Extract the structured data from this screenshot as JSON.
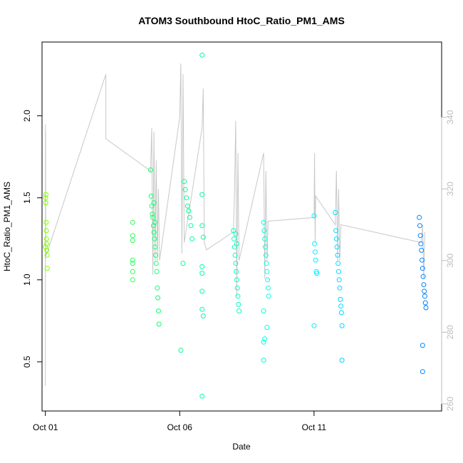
{
  "chart_data": {
    "type": "scatter",
    "title": "ATOM3 Southbound HtoC_Ratio_PM1_AMS",
    "xlabel": "Date",
    "ylabel": "HtoC_Ratio_PM1_AMS",
    "x_axis": {
      "unit": "days",
      "range": [
        "2016-09-30T21:00",
        "2016-10-15T18:00"
      ],
      "ticks": [
        {
          "label": "Oct 01",
          "date": "2016-10-01"
        },
        {
          "label": "Oct 06",
          "date": "2016-10-06"
        },
        {
          "label": "Oct 11",
          "date": "2016-10-11"
        }
      ]
    },
    "y_axis": {
      "range": [
        0.2,
        2.45
      ],
      "ticks": [
        {
          "label": "0.5",
          "value": 0.5
        },
        {
          "label": "1.0",
          "value": 1.0
        },
        {
          "label": "1.5",
          "value": 1.5
        },
        {
          "label": "2.0",
          "value": 2.0
        }
      ]
    },
    "y2_axis": {
      "range": [
        258,
        361
      ],
      "color": "#bdbdbd",
      "ticks": [
        {
          "label": "260",
          "value": 260
        },
        {
          "label": "280",
          "value": 280
        },
        {
          "label": "300",
          "value": 300
        },
        {
          "label": "320",
          "value": 320
        },
        {
          "label": "340",
          "value": 340
        }
      ]
    },
    "grid": false,
    "legend": "none",
    "point_color_gradient": [
      "#80ff00",
      "#00ff80",
      "#00ffff",
      "#0080ff"
    ],
    "line_color": "#c8c8c8",
    "points": [
      {
        "x": "2016-10-01T00:00",
        "y": 1.2
      },
      {
        "x": "2016-10-01T00:10",
        "y": 1.5
      },
      {
        "x": "2016-10-01T00:20",
        "y": 1.47
      },
      {
        "x": "2016-10-01T00:30",
        "y": 1.52
      },
      {
        "x": "2016-10-01T00:40",
        "y": 1.35
      },
      {
        "x": "2016-10-01T00:50",
        "y": 1.3
      },
      {
        "x": "2016-10-01T01:00",
        "y": 1.25
      },
      {
        "x": "2016-10-01T01:10",
        "y": 1.22
      },
      {
        "x": "2016-10-01T01:20",
        "y": 1.18
      },
      {
        "x": "2016-10-01T01:30",
        "y": 1.15
      },
      {
        "x": "2016-10-01T01:40",
        "y": 1.07
      },
      {
        "x": "2016-10-04T06:00",
        "y": 1.35
      },
      {
        "x": "2016-10-04T06:00",
        "y": 1.27
      },
      {
        "x": "2016-10-04T06:00",
        "y": 1.24
      },
      {
        "x": "2016-10-04T06:00",
        "y": 1.12
      },
      {
        "x": "2016-10-04T06:00",
        "y": 1.1
      },
      {
        "x": "2016-10-04T06:00",
        "y": 1.05
      },
      {
        "x": "2016-10-04T06:00",
        "y": 1.0
      },
      {
        "x": "2016-10-04T22:00",
        "y": 1.67
      },
      {
        "x": "2016-10-04T22:30",
        "y": 1.51
      },
      {
        "x": "2016-10-04T23:00",
        "y": 1.45
      },
      {
        "x": "2016-10-04T23:30",
        "y": 1.4
      },
      {
        "x": "2016-10-05T00:00",
        "y": 1.38
      },
      {
        "x": "2016-10-05T00:30",
        "y": 1.33
      },
      {
        "x": "2016-10-05T01:00",
        "y": 1.29
      },
      {
        "x": "2016-10-05T01:30",
        "y": 1.25
      },
      {
        "x": "2016-10-05T02:00",
        "y": 1.2
      },
      {
        "x": "2016-10-05T02:30",
        "y": 1.15
      },
      {
        "x": "2016-10-05T03:00",
        "y": 1.1
      },
      {
        "x": "2016-10-05T03:30",
        "y": 1.05
      },
      {
        "x": "2016-10-05T04:00",
        "y": 0.95
      },
      {
        "x": "2016-10-05T04:30",
        "y": 0.89
      },
      {
        "x": "2016-10-05T05:00",
        "y": 0.81
      },
      {
        "x": "2016-10-05T05:30",
        "y": 0.73
      },
      {
        "x": "2016-10-05T01:00",
        "y": 1.47
      },
      {
        "x": "2016-10-05T02:00",
        "y": 1.35
      },
      {
        "x": "2016-10-06T01:00",
        "y": 0.57
      },
      {
        "x": "2016-10-06T03:00",
        "y": 1.1
      },
      {
        "x": "2016-10-06T04:00",
        "y": 1.6
      },
      {
        "x": "2016-10-06T05:00",
        "y": 1.55
      },
      {
        "x": "2016-10-06T06:00",
        "y": 1.5
      },
      {
        "x": "2016-10-06T07:00",
        "y": 1.45
      },
      {
        "x": "2016-10-06T08:00",
        "y": 1.42
      },
      {
        "x": "2016-10-06T09:00",
        "y": 1.38
      },
      {
        "x": "2016-10-06T10:00",
        "y": 1.33
      },
      {
        "x": "2016-10-06T11:00",
        "y": 1.25
      },
      {
        "x": "2016-10-06T20:00",
        "y": 2.37
      },
      {
        "x": "2016-10-06T20:00",
        "y": 1.52
      },
      {
        "x": "2016-10-06T20:00",
        "y": 1.33
      },
      {
        "x": "2016-10-06T20:00",
        "y": 1.08
      },
      {
        "x": "2016-10-06T20:00",
        "y": 1.04
      },
      {
        "x": "2016-10-06T20:00",
        "y": 0.93
      },
      {
        "x": "2016-10-06T20:00",
        "y": 0.82
      },
      {
        "x": "2016-10-06T21:00",
        "y": 1.26
      },
      {
        "x": "2016-10-06T21:00",
        "y": 0.78
      },
      {
        "x": "2016-10-06T20:00",
        "y": 0.29
      },
      {
        "x": "2016-10-08T00:00",
        "y": 1.3
      },
      {
        "x": "2016-10-08T00:30",
        "y": 1.25
      },
      {
        "x": "2016-10-08T01:00",
        "y": 1.2
      },
      {
        "x": "2016-10-08T01:30",
        "y": 1.15
      },
      {
        "x": "2016-10-08T02:00",
        "y": 1.1
      },
      {
        "x": "2016-10-08T02:30",
        "y": 1.05
      },
      {
        "x": "2016-10-08T03:00",
        "y": 1.0
      },
      {
        "x": "2016-10-08T03:30",
        "y": 0.95
      },
      {
        "x": "2016-10-08T04:00",
        "y": 0.9
      },
      {
        "x": "2016-10-08T04:30",
        "y": 0.85
      },
      {
        "x": "2016-10-08T05:00",
        "y": 0.81
      },
      {
        "x": "2016-10-08T02:00",
        "y": 1.28
      },
      {
        "x": "2016-10-08T03:00",
        "y": 1.22
      },
      {
        "x": "2016-10-09T03:00",
        "y": 1.35
      },
      {
        "x": "2016-10-09T03:30",
        "y": 1.3
      },
      {
        "x": "2016-10-09T04:00",
        "y": 1.25
      },
      {
        "x": "2016-10-09T04:30",
        "y": 1.2
      },
      {
        "x": "2016-10-09T05:00",
        "y": 1.15
      },
      {
        "x": "2016-10-09T05:30",
        "y": 1.1
      },
      {
        "x": "2016-10-09T06:00",
        "y": 1.05
      },
      {
        "x": "2016-10-09T06:30",
        "y": 1.0
      },
      {
        "x": "2016-10-09T07:00",
        "y": 0.95
      },
      {
        "x": "2016-10-09T07:30",
        "y": 0.9
      },
      {
        "x": "2016-10-09T03:00",
        "y": 0.81
      },
      {
        "x": "2016-10-09T06:00",
        "y": 0.71
      },
      {
        "x": "2016-10-09T04:00",
        "y": 0.64
      },
      {
        "x": "2016-10-09T03:00",
        "y": 0.62
      },
      {
        "x": "2016-10-09T03:00",
        "y": 0.51
      },
      {
        "x": "2016-10-11T00:00",
        "y": 1.39
      },
      {
        "x": "2016-10-11T00:30",
        "y": 1.22
      },
      {
        "x": "2016-10-11T01:00",
        "y": 1.17
      },
      {
        "x": "2016-10-11T01:30",
        "y": 1.12
      },
      {
        "x": "2016-10-11T02:00",
        "y": 1.05
      },
      {
        "x": "2016-10-11T02:30",
        "y": 1.04
      },
      {
        "x": "2016-10-11T00:00",
        "y": 0.72
      },
      {
        "x": "2016-10-11T19:00",
        "y": 1.41
      },
      {
        "x": "2016-10-11T19:30",
        "y": 1.3
      },
      {
        "x": "2016-10-11T20:00",
        "y": 1.25
      },
      {
        "x": "2016-10-11T20:30",
        "y": 1.2
      },
      {
        "x": "2016-10-11T21:00",
        "y": 1.15
      },
      {
        "x": "2016-10-11T21:30",
        "y": 1.1
      },
      {
        "x": "2016-10-11T22:00",
        "y": 1.05
      },
      {
        "x": "2016-10-11T22:30",
        "y": 1.0
      },
      {
        "x": "2016-10-11T23:00",
        "y": 0.95
      },
      {
        "x": "2016-10-11T23:30",
        "y": 0.88
      },
      {
        "x": "2016-10-12T00:00",
        "y": 0.84
      },
      {
        "x": "2016-10-12T00:30",
        "y": 0.8
      },
      {
        "x": "2016-10-12T01:00",
        "y": 0.72
      },
      {
        "x": "2016-10-12T01:00",
        "y": 0.51
      },
      {
        "x": "2016-10-14T22:00",
        "y": 1.38
      },
      {
        "x": "2016-10-14T22:30",
        "y": 1.33
      },
      {
        "x": "2016-10-14T23:00",
        "y": 1.27
      },
      {
        "x": "2016-10-14T23:30",
        "y": 1.22
      },
      {
        "x": "2016-10-15T00:00",
        "y": 1.18
      },
      {
        "x": "2016-10-15T00:30",
        "y": 1.12
      },
      {
        "x": "2016-10-15T01:00",
        "y": 1.07
      },
      {
        "x": "2016-10-15T01:30",
        "y": 1.02
      },
      {
        "x": "2016-10-15T02:00",
        "y": 0.97
      },
      {
        "x": "2016-10-15T02:30",
        "y": 0.93
      },
      {
        "x": "2016-10-15T03:00",
        "y": 0.9
      },
      {
        "x": "2016-10-15T03:30",
        "y": 0.86
      },
      {
        "x": "2016-10-15T04:00",
        "y": 0.83
      },
      {
        "x": "2016-10-15T01:00",
        "y": 0.6
      },
      {
        "x": "2016-10-15T01:00",
        "y": 0.44
      }
    ],
    "altitude_series": [
      {
        "x": "2016-10-01T00:00",
        "y2": 300
      },
      {
        "x": "2016-10-01T00:00",
        "y2": 265
      },
      {
        "x": "2016-10-01T00:05",
        "y2": 338
      },
      {
        "x": "2016-10-01T00:10",
        "y2": 300
      },
      {
        "x": "2016-10-01T00:15",
        "y2": 336
      },
      {
        "x": "2016-10-01T00:20",
        "y2": 301
      },
      {
        "x": "2016-10-03T06:00",
        "y2": 352
      },
      {
        "x": "2016-10-03T06:00",
        "y2": 334
      },
      {
        "x": "2016-10-04T22:00",
        "y2": 325
      },
      {
        "x": "2016-10-04T23:00",
        "y2": 337
      },
      {
        "x": "2016-10-05T00:00",
        "y2": 296
      },
      {
        "x": "2016-10-05T01:00",
        "y2": 336
      },
      {
        "x": "2016-10-05T02:00",
        "y2": 300
      },
      {
        "x": "2016-10-05T03:00",
        "y2": 328
      },
      {
        "x": "2016-10-05T04:00",
        "y2": 300
      },
      {
        "x": "2016-10-05T05:00",
        "y2": 320
      },
      {
        "x": "2016-10-05T06:00",
        "y2": 300
      },
      {
        "x": "2016-10-06T00:00",
        "y2": 340
      },
      {
        "x": "2016-10-06T01:00",
        "y2": 355
      },
      {
        "x": "2016-10-06T02:00",
        "y2": 302
      },
      {
        "x": "2016-10-06T03:00",
        "y2": 352
      },
      {
        "x": "2016-10-06T04:00",
        "y2": 305
      },
      {
        "x": "2016-10-06T20:00",
        "y2": 337
      },
      {
        "x": "2016-10-06T21:00",
        "y2": 348
      },
      {
        "x": "2016-10-06T22:00",
        "y2": 305
      },
      {
        "x": "2016-10-07T00:00",
        "y2": 303
      },
      {
        "x": "2016-10-08T00:00",
        "y2": 308
      },
      {
        "x": "2016-10-08T01:00",
        "y2": 320
      },
      {
        "x": "2016-10-08T02:00",
        "y2": 339
      },
      {
        "x": "2016-10-08T03:00",
        "y2": 290
      },
      {
        "x": "2016-10-08T04:00",
        "y2": 330
      },
      {
        "x": "2016-10-08T05:00",
        "y2": 300
      },
      {
        "x": "2016-10-09T03:00",
        "y2": 330
      },
      {
        "x": "2016-10-09T04:00",
        "y2": 295
      },
      {
        "x": "2016-10-09T05:00",
        "y2": 325
      },
      {
        "x": "2016-10-09T06:00",
        "y2": 300
      },
      {
        "x": "2016-10-09T07:00",
        "y2": 311
      },
      {
        "x": "2016-10-11T00:00",
        "y2": 312
      },
      {
        "x": "2016-10-11T00:30",
        "y2": 330
      },
      {
        "x": "2016-10-11T01:00",
        "y2": 305
      },
      {
        "x": "2016-10-11T01:30",
        "y2": 318
      },
      {
        "x": "2016-10-11T19:00",
        "y2": 310
      },
      {
        "x": "2016-10-11T20:00",
        "y2": 325
      },
      {
        "x": "2016-10-11T21:00",
        "y2": 300
      },
      {
        "x": "2016-10-11T22:00",
        "y2": 320
      },
      {
        "x": "2016-10-11T23:00",
        "y2": 300
      },
      {
        "x": "2016-10-12T00:00",
        "y2": 310
      },
      {
        "x": "2016-10-15T00:00",
        "y2": 305
      },
      {
        "x": "2016-10-15T01:00",
        "y2": 310
      },
      {
        "x": "2016-10-15T02:00",
        "y2": 295
      },
      {
        "x": "2016-10-15T03:00",
        "y2": 308
      }
    ]
  }
}
